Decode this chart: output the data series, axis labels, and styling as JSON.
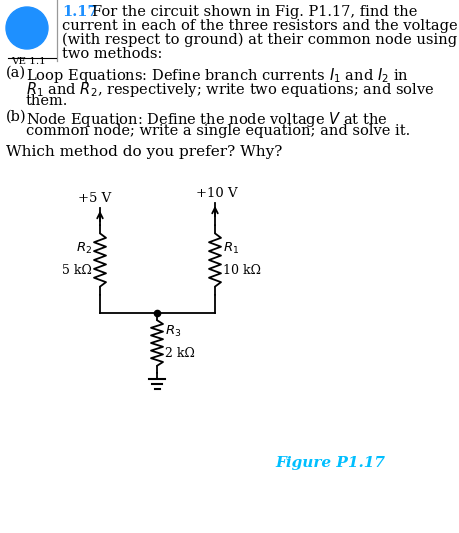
{
  "bg_color": "#ffffff",
  "title_number": "1.17",
  "circle_color": "#1E90FF",
  "ve_label": "VE 1.1",
  "fig_caption": "Figure P1.17",
  "fig_caption_color": "#00BFFF",
  "v1_label": "+5 V",
  "v2_label": "+10 V",
  "r1_label": "$R_1$",
  "r1_val": "10 kΩ",
  "r2_label": "$R_2$",
  "r2_val": "5 kΩ",
  "r3_label": "$R_3$",
  "r3_val": "2 kΩ",
  "fontsize_body": 10.5,
  "fontsize_title": 10.5,
  "fontsize_small": 8.5,
  "fontsize_circuit": 9.5
}
